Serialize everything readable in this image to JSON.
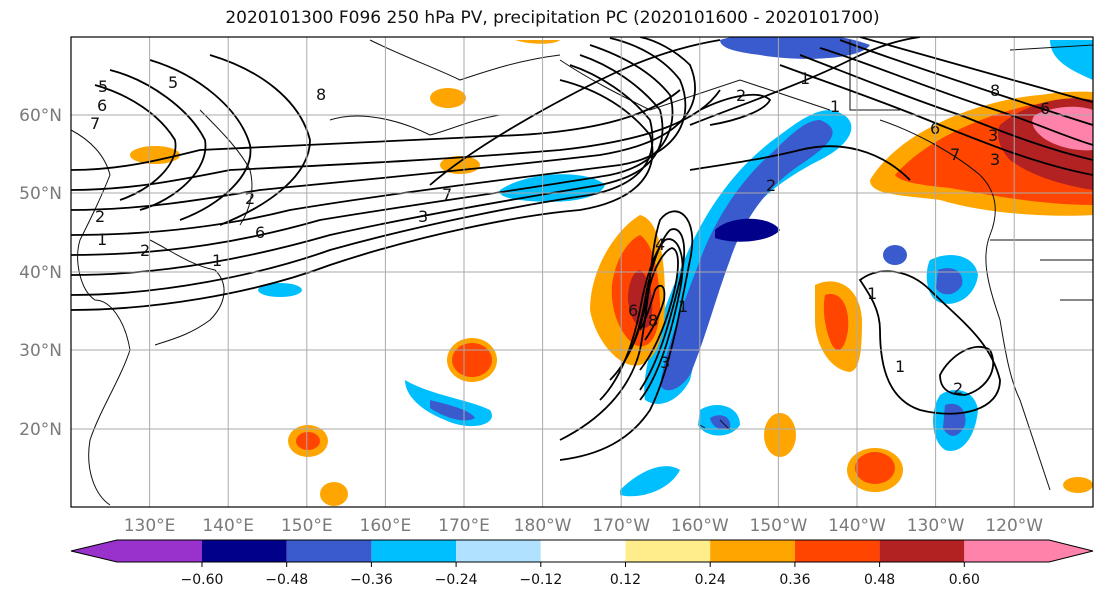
{
  "title": "2020101300 F096 250 hPa PV, precipitation PC (2020101600 - 2020101700)",
  "lon_labels": [
    "130°E",
    "140°E",
    "150°E",
    "160°E",
    "170°E",
    "180°W",
    "170°W",
    "160°W",
    "150°W",
    "140°W",
    "130°W",
    "120°W"
  ],
  "lat_labels": [
    "60°N",
    "50°N",
    "40°N",
    "30°N",
    "20°N"
  ],
  "colorbar": {
    "colors": [
      "#9932cc",
      "#00008b",
      "#3a5bcd",
      "#00bfff",
      "#b0e2ff",
      "#ffffff",
      "#ffec8b",
      "#ffa500",
      "#ff4500",
      "#b22222",
      "#ff82ab"
    ],
    "tick_labels": [
      "−0.60",
      "−0.48",
      "−0.36",
      "−0.24",
      "−0.12",
      "0.12",
      "0.24",
      "0.36",
      "0.48",
      "0.60"
    ]
  },
  "pv_contour_labels": [
    "5",
    "6",
    "7",
    "5",
    "8",
    "2",
    "1",
    "2",
    "1",
    "2",
    "6",
    "3",
    "2",
    "1",
    "7",
    "3",
    "3",
    "1",
    "2",
    "4",
    "6",
    "8",
    "6",
    "8",
    "1",
    "3",
    "6",
    "7",
    "1",
    "1",
    "2"
  ]
}
